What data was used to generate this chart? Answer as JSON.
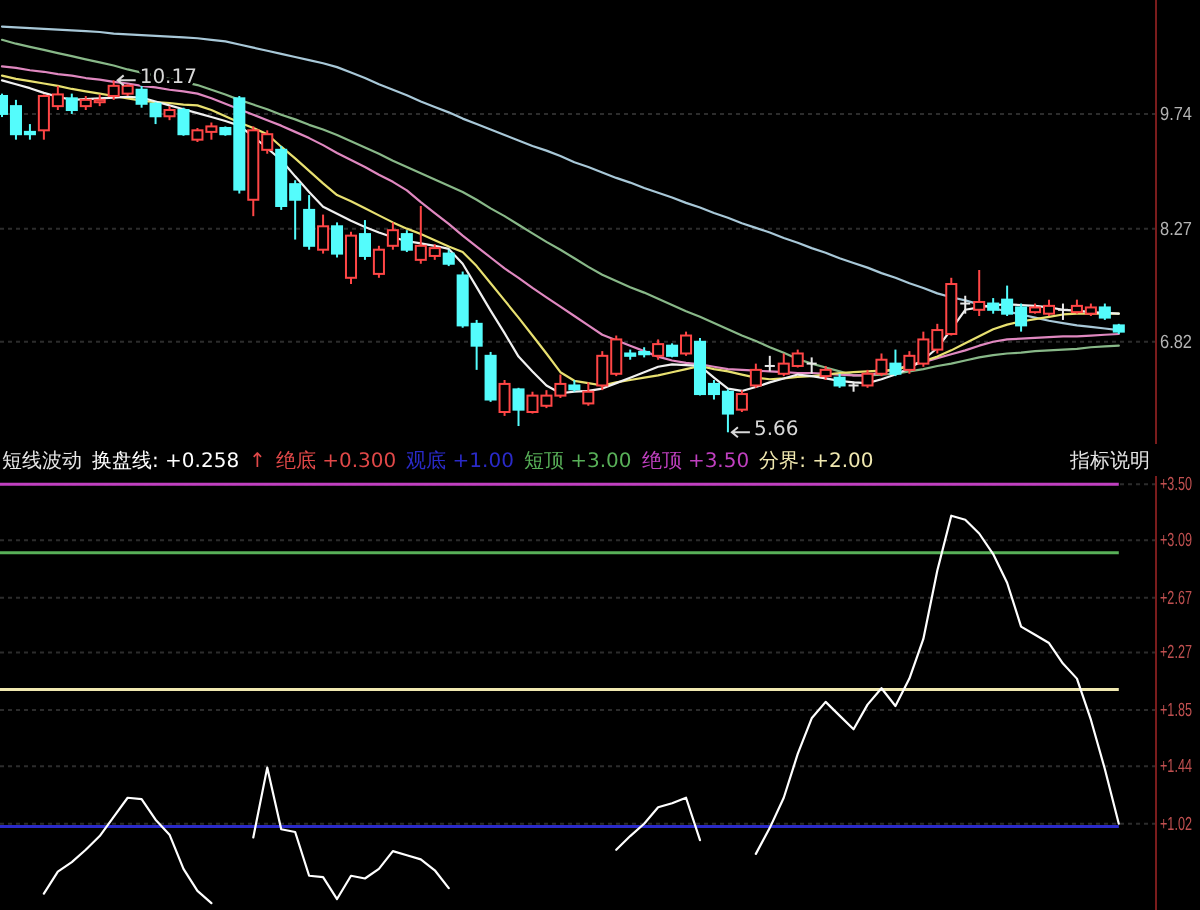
{
  "chart_data": [
    {
      "type": "candlestick",
      "categories": [
        null,
        null,
        null,
        null,
        null,
        null,
        null,
        null,
        null,
        null,
        null,
        null,
        null,
        null,
        null,
        null,
        null,
        null,
        null,
        null,
        null,
        null,
        null,
        null,
        null,
        null,
        null,
        null,
        null,
        null,
        null,
        null,
        null,
        null,
        null,
        null,
        null,
        null,
        null,
        null,
        null,
        null,
        null,
        null,
        null,
        null,
        null,
        null,
        null,
        null,
        null,
        null,
        null,
        null,
        null,
        null,
        null,
        null,
        null,
        null,
        null,
        null,
        null,
        null,
        null,
        null,
        null,
        null,
        null,
        null,
        null,
        null,
        null,
        null,
        null,
        null,
        null,
        null,
        null,
        null,
        null
      ],
      "ohlc": [
        [
          9.97,
          10.0,
          9.7,
          9.74
        ],
        [
          9.84,
          9.92,
          9.41,
          9.48
        ],
        [
          9.51,
          9.61,
          9.41,
          9.48
        ],
        [
          9.53,
          9.99,
          9.41,
          9.97
        ],
        [
          9.84,
          10.1,
          9.79,
          9.99
        ],
        [
          9.94,
          10.0,
          9.74,
          9.79
        ],
        [
          9.84,
          9.97,
          9.79,
          9.92
        ],
        [
          9.89,
          9.99,
          9.84,
          9.92
        ],
        [
          9.97,
          10.17,
          9.92,
          10.1
        ],
        [
          10.0,
          10.12,
          9.97,
          10.1
        ],
        [
          10.05,
          10.1,
          9.82,
          9.87
        ],
        [
          9.87,
          9.89,
          9.61,
          9.71
        ],
        [
          9.71,
          9.84,
          9.66,
          9.79
        ],
        [
          9.79,
          9.82,
          9.46,
          9.48
        ],
        [
          9.41,
          9.56,
          9.38,
          9.53
        ],
        [
          9.51,
          9.63,
          9.41,
          9.58
        ],
        [
          9.56,
          9.58,
          9.46,
          9.48
        ],
        [
          9.94,
          9.97,
          8.72,
          8.77
        ],
        [
          8.64,
          9.58,
          8.43,
          9.53
        ],
        [
          9.28,
          9.53,
          9.23,
          9.48
        ],
        [
          9.28,
          9.33,
          8.51,
          8.56
        ],
        [
          8.84,
          8.89,
          8.13,
          8.64
        ],
        [
          8.51,
          8.7,
          8.0,
          8.05
        ],
        [
          8.0,
          8.45,
          7.95,
          8.3
        ],
        [
          8.3,
          8.35,
          7.9,
          7.95
        ],
        [
          7.64,
          8.23,
          7.56,
          8.18
        ],
        [
          8.2,
          8.38,
          7.87,
          7.92
        ],
        [
          7.69,
          8.05,
          7.64,
          8.0
        ],
        [
          8.05,
          8.35,
          8.0,
          8.25
        ],
        [
          8.2,
          8.25,
          7.97,
          8.0
        ],
        [
          7.87,
          8.56,
          7.82,
          8.05
        ],
        [
          7.92,
          8.07,
          7.87,
          8.02
        ],
        [
          7.95,
          8.0,
          7.79,
          7.82
        ],
        [
          7.67,
          7.72,
          7.0,
          7.03
        ],
        [
          7.05,
          7.1,
          6.46,
          6.77
        ],
        [
          6.64,
          6.69,
          6.05,
          6.08
        ],
        [
          5.92,
          6.33,
          5.87,
          6.28
        ],
        [
          6.21,
          6.23,
          5.74,
          5.95
        ],
        [
          5.92,
          6.18,
          5.9,
          6.13
        ],
        [
          6.0,
          6.2,
          5.97,
          6.13
        ],
        [
          6.13,
          6.4,
          6.1,
          6.28
        ],
        [
          6.26,
          6.33,
          6.18,
          6.21
        ],
        [
          6.03,
          6.3,
          6.0,
          6.18
        ],
        [
          6.26,
          6.7,
          6.2,
          6.64
        ],
        [
          6.41,
          6.9,
          6.38,
          6.85
        ],
        [
          6.67,
          6.72,
          6.59,
          6.64
        ],
        [
          6.69,
          6.75,
          6.62,
          6.66
        ],
        [
          6.64,
          6.85,
          6.59,
          6.79
        ],
        [
          6.77,
          6.8,
          6.62,
          6.64
        ],
        [
          6.67,
          6.95,
          6.64,
          6.9
        ],
        [
          6.82,
          6.87,
          6.13,
          6.15
        ],
        [
          6.28,
          6.33,
          6.08,
          6.15
        ],
        [
          6.18,
          6.21,
          5.66,
          5.9
        ],
        [
          5.95,
          6.2,
          5.92,
          6.15
        ],
        [
          6.26,
          6.54,
          6.23,
          6.46
        ],
        [
          6.51,
          6.64,
          6.44,
          6.51
        ],
        [
          6.41,
          6.67,
          6.38,
          6.54
        ],
        [
          6.51,
          6.72,
          6.49,
          6.67
        ],
        [
          6.54,
          6.62,
          6.41,
          6.54
        ],
        [
          6.38,
          6.51,
          6.33,
          6.46
        ],
        [
          6.36,
          6.41,
          6.23,
          6.26
        ],
        [
          6.26,
          6.31,
          6.18,
          6.26
        ],
        [
          6.26,
          6.46,
          6.23,
          6.41
        ],
        [
          6.41,
          6.67,
          6.38,
          6.59
        ],
        [
          6.54,
          6.72,
          6.38,
          6.41
        ],
        [
          6.46,
          6.7,
          6.41,
          6.64
        ],
        [
          6.54,
          6.95,
          6.5,
          6.85
        ],
        [
          6.72,
          7.05,
          6.67,
          6.97
        ],
        [
          6.92,
          7.64,
          6.9,
          7.56
        ],
        [
          7.31,
          7.41,
          7.18,
          7.31
        ],
        [
          7.23,
          7.74,
          7.15,
          7.33
        ],
        [
          7.31,
          7.38,
          7.18,
          7.23
        ],
        [
          7.36,
          7.54,
          7.15,
          7.18
        ],
        [
          7.26,
          7.31,
          6.95,
          7.03
        ],
        [
          7.2,
          7.31,
          7.18,
          7.26
        ],
        [
          7.18,
          7.36,
          7.15,
          7.28
        ],
        [
          7.23,
          7.31,
          7.1,
          7.23
        ],
        [
          7.2,
          7.36,
          7.18,
          7.28
        ],
        [
          7.18,
          7.31,
          7.15,
          7.26
        ],
        [
          7.26,
          7.31,
          7.1,
          7.13
        ],
        [
          7.03,
          7.05,
          6.92,
          6.95
        ]
      ],
      "series": [
        {
          "type": "line",
          "color": "#a8c8d8",
          "values": [
            10.86,
            10.85,
            10.84,
            10.83,
            10.82,
            10.81,
            10.8,
            10.79,
            10.77,
            10.76,
            10.75,
            10.74,
            10.73,
            10.72,
            10.71,
            10.69,
            10.67,
            10.63,
            10.59,
            10.55,
            10.51,
            10.47,
            10.43,
            10.39,
            10.34,
            10.27,
            10.2,
            10.12,
            10.05,
            9.98,
            9.9,
            9.83,
            9.76,
            9.68,
            9.61,
            9.54,
            9.47,
            9.4,
            9.33,
            9.27,
            9.2,
            9.12,
            9.06,
            8.99,
            8.92,
            8.86,
            8.79,
            8.73,
            8.67,
            8.6,
            8.54,
            8.47,
            8.41,
            8.34,
            8.28,
            8.22,
            8.15,
            8.09,
            8.02,
            7.96,
            7.89,
            7.83,
            7.77,
            7.7,
            7.64,
            7.57,
            7.51,
            7.44,
            7.39,
            7.35,
            7.3,
            7.25,
            7.21,
            7.17,
            7.13,
            7.09,
            7.06,
            7.03,
            7.01,
            6.99,
            6.97
          ]
        },
        {
          "type": "line",
          "color": "#88b888",
          "values": [
            10.69,
            10.64,
            10.6,
            10.56,
            10.52,
            10.48,
            10.44,
            10.4,
            10.36,
            10.31,
            10.27,
            10.23,
            10.19,
            10.15,
            10.11,
            10.05,
            9.99,
            9.92,
            9.86,
            9.8,
            9.73,
            9.67,
            9.6,
            9.54,
            9.47,
            9.39,
            9.31,
            9.23,
            9.14,
            9.06,
            8.98,
            8.9,
            8.82,
            8.74,
            8.64,
            8.53,
            8.43,
            8.32,
            8.21,
            8.1,
            8.0,
            7.89,
            7.78,
            7.68,
            7.6,
            7.52,
            7.45,
            7.37,
            7.29,
            7.21,
            7.14,
            7.06,
            6.98,
            6.9,
            6.83,
            6.75,
            6.68,
            6.6,
            6.54,
            6.49,
            6.44,
            6.39,
            6.39,
            6.4,
            6.41,
            6.44,
            6.47,
            6.51,
            6.54,
            6.58,
            6.62,
            6.65,
            6.67,
            6.68,
            6.7,
            6.71,
            6.72,
            6.73,
            6.75,
            6.76,
            6.77
          ]
        },
        {
          "type": "line",
          "color": "#e088c0",
          "values": [
            10.35,
            10.33,
            10.3,
            10.28,
            10.25,
            10.23,
            10.2,
            10.18,
            10.15,
            10.13,
            10.1,
            10.08,
            10.05,
            10.03,
            10.0,
            9.94,
            9.87,
            9.8,
            9.73,
            9.66,
            9.59,
            9.51,
            9.43,
            9.34,
            9.24,
            9.15,
            9.06,
            8.96,
            8.87,
            8.76,
            8.61,
            8.47,
            8.33,
            8.18,
            8.04,
            7.9,
            7.76,
            7.64,
            7.51,
            7.39,
            7.27,
            7.15,
            7.03,
            6.91,
            6.84,
            6.77,
            6.7,
            6.63,
            6.58,
            6.55,
            6.53,
            6.5,
            6.47,
            6.46,
            6.45,
            6.44,
            6.43,
            6.42,
            6.42,
            6.41,
            6.4,
            6.39,
            6.39,
            6.43,
            6.47,
            6.52,
            6.56,
            6.61,
            6.66,
            6.71,
            6.77,
            6.82,
            6.85,
            6.86,
            6.87,
            6.88,
            6.89,
            6.89,
            6.9,
            6.91,
            6.92
          ]
        },
        {
          "type": "line",
          "color": "#e8e070",
          "values": [
            10.23,
            10.19,
            10.16,
            10.13,
            10.1,
            10.06,
            10.03,
            10.0,
            9.97,
            9.94,
            9.91,
            9.89,
            9.88,
            9.86,
            9.85,
            9.79,
            9.71,
            9.63,
            9.56,
            9.48,
            9.32,
            9.17,
            9.01,
            8.85,
            8.7,
            8.62,
            8.53,
            8.44,
            8.35,
            8.27,
            8.2,
            8.12,
            8.04,
            7.97,
            7.79,
            7.57,
            7.35,
            7.13,
            6.9,
            6.67,
            6.43,
            6.32,
            6.29,
            6.26,
            6.3,
            6.33,
            6.36,
            6.39,
            6.43,
            6.47,
            6.51,
            6.47,
            6.44,
            6.4,
            6.36,
            6.34,
            6.35,
            6.37,
            6.38,
            6.4,
            6.42,
            6.43,
            6.44,
            6.45,
            6.46,
            6.51,
            6.57,
            6.63,
            6.71,
            6.8,
            6.89,
            6.98,
            7.04,
            7.08,
            7.11,
            7.14,
            7.17,
            7.18,
            7.18,
            7.18,
            7.18
          ]
        },
        {
          "type": "line",
          "color": "#f0f0f0",
          "values": [
            10.17,
            10.12,
            10.07,
            10.01,
            9.96,
            9.92,
            9.93,
            9.94,
            9.95,
            9.96,
            9.95,
            9.9,
            9.85,
            9.8,
            9.75,
            9.7,
            9.65,
            9.59,
            9.45,
            9.3,
            9.15,
            8.94,
            8.74,
            8.55,
            8.46,
            8.37,
            8.29,
            8.22,
            8.16,
            8.11,
            8.08,
            8.05,
            8.01,
            7.82,
            7.52,
            7.22,
            6.93,
            6.63,
            6.44,
            6.26,
            6.16,
            6.18,
            6.19,
            6.22,
            6.29,
            6.36,
            6.43,
            6.5,
            6.53,
            6.52,
            6.51,
            6.36,
            6.22,
            6.19,
            6.24,
            6.3,
            6.35,
            6.4,
            6.38,
            6.35,
            6.32,
            6.3,
            6.29,
            6.34,
            6.4,
            6.48,
            6.59,
            6.74,
            6.98,
            7.23,
            7.26,
            7.29,
            7.3,
            7.29,
            7.28,
            7.26,
            7.23,
            7.22,
            7.2,
            7.19,
            7.18
          ]
        }
      ],
      "ylim": [
        5.51,
        11.2
      ],
      "yticks": [
        6.82,
        8.27,
        9.74
      ],
      "grid": "y",
      "annotations": [
        "10.17",
        "5.66"
      ]
    },
    {
      "type": "line",
      "title": "短线波动",
      "categories": [
        null,
        null,
        null,
        null,
        null,
        null,
        null,
        null,
        null,
        null,
        null,
        null,
        null,
        null,
        null,
        null,
        null,
        null,
        null,
        null,
        null,
        null,
        null,
        null,
        null,
        null,
        null,
        null,
        null,
        null,
        null,
        null,
        null,
        null,
        null,
        null,
        null,
        null,
        null,
        null,
        null,
        null,
        null,
        null,
        null,
        null,
        null,
        null,
        null,
        null,
        null,
        null,
        null,
        null,
        null,
        null,
        null,
        null,
        null,
        null,
        null,
        null,
        null,
        null,
        null,
        null,
        null,
        null,
        null,
        null,
        null,
        null,
        null,
        null,
        null,
        null,
        null,
        null,
        null,
        null,
        null
      ],
      "series": [
        {
          "name": "换盘线: +0.258",
          "color": "#ffffff",
          "values": [
            null,
            null,
            null,
            0.51,
            0.67,
            0.74,
            0.83,
            0.93,
            1.07,
            1.21,
            1.2,
            1.05,
            0.94,
            0.69,
            0.53,
            0.44,
            null,
            null,
            0.92,
            1.43,
            0.98,
            0.96,
            0.64,
            0.63,
            0.47,
            0.64,
            0.62,
            0.69,
            0.82,
            0.79,
            0.76,
            0.68,
            0.55,
            null,
            null,
            null,
            null,
            null,
            null,
            null,
            null,
            null,
            null,
            null,
            0.83,
            0.93,
            1.02,
            1.14,
            1.17,
            1.21,
            0.9,
            null,
            null,
            null,
            0.8,
            0.99,
            1.21,
            1.53,
            1.79,
            1.91,
            1.81,
            1.71,
            1.89,
            2.01,
            1.88,
            2.08,
            2.37,
            2.87,
            3.27,
            3.24,
            3.14,
            2.99,
            2.78,
            2.46,
            2.4,
            2.34,
            2.19,
            2.08,
            1.78,
            1.42,
            1.02
          ]
        }
      ],
      "ylim": [
        0.39,
        3.56
      ],
      "yticks": [
        {
          "value": 1.02,
          "label": "+1.02"
        },
        {
          "value": 1.44,
          "label": "+1.44"
        },
        {
          "value": 1.85,
          "label": "+1.85"
        },
        {
          "value": 2.27,
          "label": "+2.27"
        },
        {
          "value": 2.67,
          "label": "+2.67"
        },
        {
          "value": 3.09,
          "label": "+3.09"
        },
        {
          "value": 3.5,
          "label": "+3.50"
        }
      ],
      "grid": "y",
      "legend": "top",
      "ref_lines": [
        {
          "axis": "y",
          "value": 1.0,
          "label": "观底 +1.00",
          "color": "#2a2ac8"
        },
        {
          "axis": "y",
          "value": 3.0,
          "label": "短顶 +3.00",
          "color": "#58b058"
        },
        {
          "axis": "y",
          "value": 3.5,
          "label": "绝顶 +3.50",
          "color": "#c040c0"
        },
        {
          "axis": "y",
          "value": 2.0,
          "label": "分界: +2.00",
          "color": "#f0e8b0"
        }
      ],
      "annotations": [
        "↑",
        "绝底 +0.300",
        "指标说明"
      ]
    }
  ]
}
